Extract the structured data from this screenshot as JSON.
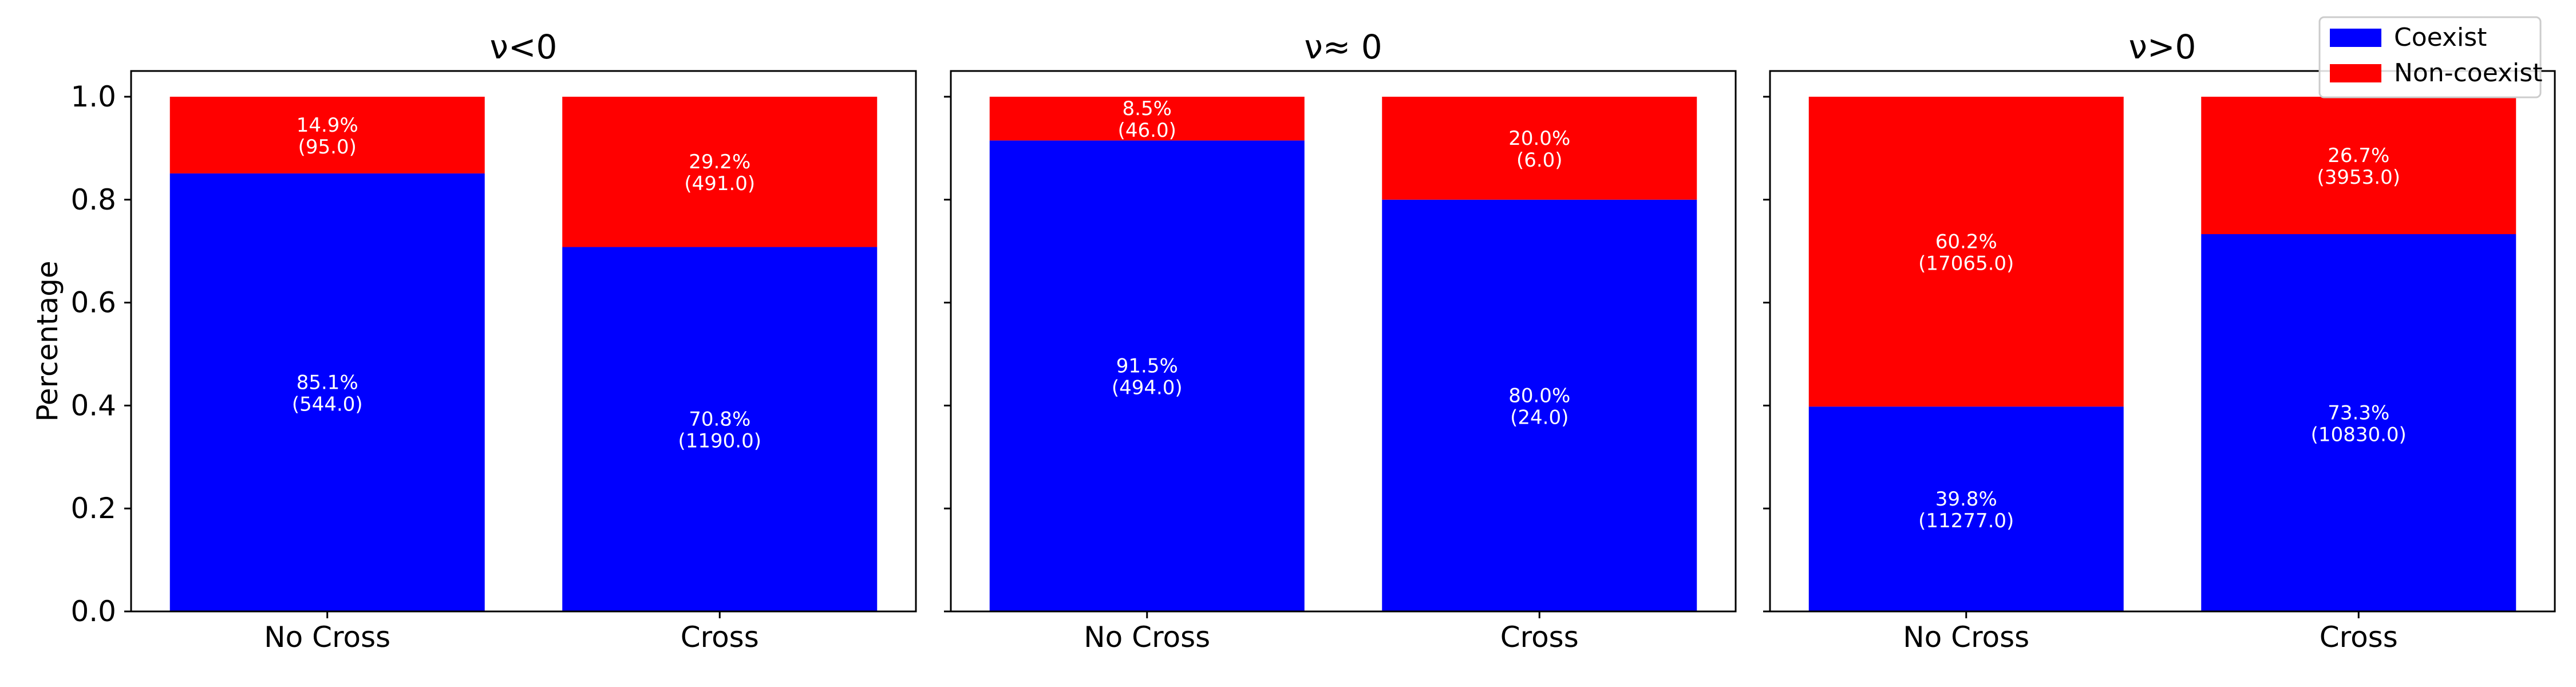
{
  "colors": {
    "coexist": "#0000ff",
    "non_coexist": "#ff0000"
  },
  "chart_data": [
    {
      "type": "bar",
      "stacked": true,
      "title": "ν<0",
      "xlabel": "",
      "ylabel": "Percentage",
      "ylim": [
        0,
        1.05
      ],
      "yticks": [
        "0.0",
        "0.2",
        "0.4",
        "0.6",
        "0.8",
        "1.0"
      ],
      "categories": [
        "No Cross",
        "Cross"
      ],
      "series": [
        {
          "name": "Coexist",
          "values": [
            0.851,
            0.708
          ],
          "labels": [
            "85.1%",
            "70.8%"
          ],
          "counts": [
            "(544.0)",
            "(1190.0)"
          ]
        },
        {
          "name": "Non-coexist",
          "values": [
            0.149,
            0.292
          ],
          "labels": [
            "14.9%",
            "29.2%"
          ],
          "counts": [
            "(95.0)",
            "(491.0)"
          ]
        }
      ]
    },
    {
      "type": "bar",
      "stacked": true,
      "title": "ν≈ 0",
      "xlabel": "",
      "ylabel": "",
      "ylim": [
        0,
        1.05
      ],
      "categories": [
        "No Cross",
        "Cross"
      ],
      "series": [
        {
          "name": "Coexist",
          "values": [
            0.915,
            0.8
          ],
          "labels": [
            "91.5%",
            "80.0%"
          ],
          "counts": [
            "(494.0)",
            "(24.0)"
          ]
        },
        {
          "name": "Non-coexist",
          "values": [
            0.085,
            0.2
          ],
          "labels": [
            "8.5%",
            "20.0%"
          ],
          "counts": [
            "(46.0)",
            "(6.0)"
          ]
        }
      ]
    },
    {
      "type": "bar",
      "stacked": true,
      "title": "ν>0",
      "xlabel": "",
      "ylabel": "",
      "ylim": [
        0,
        1.05
      ],
      "categories": [
        "No Cross",
        "Cross"
      ],
      "series": [
        {
          "name": "Coexist",
          "values": [
            0.398,
            0.733
          ],
          "labels": [
            "39.8%",
            "73.3%"
          ],
          "counts": [
            "(11277.0)",
            "(10830.0)"
          ]
        },
        {
          "name": "Non-coexist",
          "values": [
            0.602,
            0.267
          ],
          "labels": [
            "60.2%",
            "26.7%"
          ],
          "counts": [
            "(17065.0)",
            "(3953.0)"
          ]
        }
      ]
    }
  ],
  "legend": {
    "position": "top-right",
    "entries": [
      "Coexist",
      "Non-coexist"
    ]
  }
}
